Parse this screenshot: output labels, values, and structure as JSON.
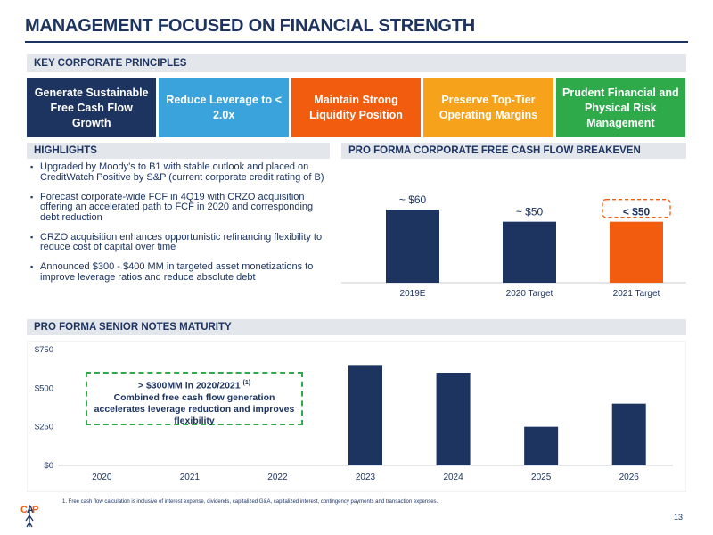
{
  "title": "MANAGEMENT FOCUSED ON FINANCIAL STRENGTH",
  "sections": {
    "principles": "KEY CORPORATE PRINCIPLES",
    "highlights": "HIGHLIGHTS",
    "breakeven": "PRO FORMA CORPORATE FREE CASH FLOW BREAKEVEN",
    "maturity": "PRO FORMA SENIOR NOTES MATURITY"
  },
  "principles": [
    {
      "label": "Generate Sustainable Free Cash Flow Growth",
      "color": "#1d3461"
    },
    {
      "label": "Reduce Leverage to < 2.0x",
      "color": "#3aa3dc"
    },
    {
      "label": "Maintain Strong Liquidity Position",
      "color": "#f25c0f"
    },
    {
      "label": "Preserve Top-Tier Operating Margins",
      "color": "#f7a21b"
    },
    {
      "label": "Prudent Financial and Physical Risk Management",
      "color": "#2eaa4a"
    }
  ],
  "highlights": [
    "Upgraded by Moody’s to B1 with stable outlook and placed on CreditWatch Positive by S&P (current corporate credit rating of B)",
    "Forecast corporate-wide FCF in 4Q19 with CRZO acquisition offering an accelerated path to FCF in 2020 and corresponding debt reduction",
    "CRZO acquisition enhances opportunistic refinancing flexibility to reduce cost of capital over time",
    "Announced $300 - $400 MM in targeted asset monetizations to improve leverage ratios and reduce absolute debt"
  ],
  "chart_data": [
    {
      "type": "bar",
      "categories": [
        "2019E",
        "2020 Target",
        "2021 Target"
      ],
      "values": [
        60,
        50,
        50
      ],
      "data_labels": [
        "~ $60",
        "~ $50",
        "< $50"
      ],
      "colors": [
        "#1d3461",
        "#1d3461",
        "#f25c0f"
      ]
    },
    {
      "type": "bar",
      "categories": [
        "2020",
        "2021",
        "2022",
        "2023",
        "2024",
        "2025",
        "2026"
      ],
      "values": [
        0,
        0,
        0,
        650,
        600,
        250,
        400
      ],
      "yticks": [
        "$0",
        "$250",
        "$500",
        "$750"
      ],
      "ylim": [
        0,
        750
      ],
      "color": "#1d3461"
    }
  ],
  "callout": {
    "line1": "> $300MM in 2020/2021",
    "sup": "(1)",
    "line2": "Combined free cash flow generation accelerates leverage reduction and improves flexibility"
  },
  "footnote": "1.   Free cash flow calculation is inclusive of interest expense, dividends, capitalized G&A, capitalized interest, contingency payments and transaction expenses.",
  "page_number": "13",
  "logo": {
    "name": "cap-logo-icon",
    "colors": [
      "#f25c0f",
      "#1d3461"
    ]
  }
}
